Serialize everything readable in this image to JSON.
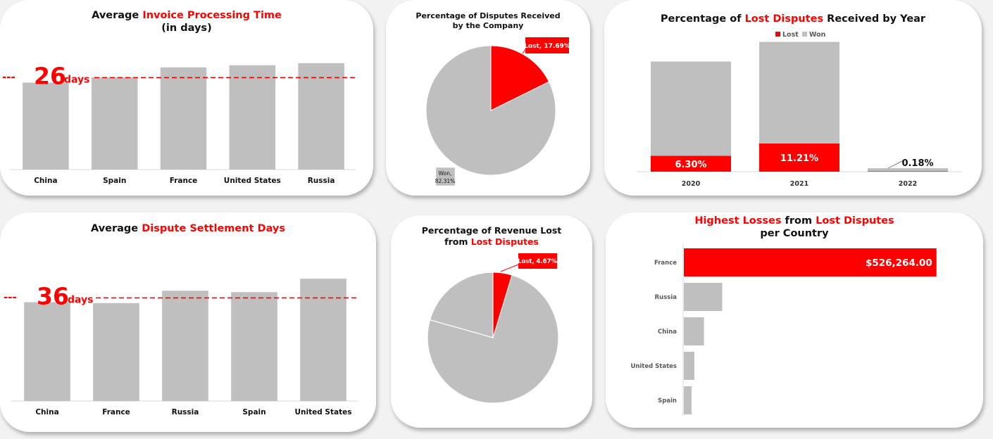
{
  "colors": {
    "lost": "#ff0000",
    "won": "#bfbfbf",
    "axis": "#d9d9d9",
    "text": "#111111",
    "white": "#ffffff"
  },
  "cards": {
    "invoice": {
      "title_pre": "Average ",
      "title_red": "Invoice Processing Time",
      "title_post": "",
      "title_line2": "(in days)"
    },
    "disputes_pie": {
      "title_line1": "Percentage of Disputes Received",
      "title_line2": "by the Company"
    },
    "lost_year": {
      "title_pre": "Percentage of ",
      "title_red": "Lost Disputes",
      "title_post": " Received by Year"
    },
    "settlement": {
      "title_pre": "Average ",
      "title_red": "Dispute Settlement Days"
    },
    "revenue_pie": {
      "title_line1": "Percentage of Revenue Lost",
      "title_pre2": "from ",
      "title_red2": "Lost Disputes"
    },
    "losses": {
      "title_red1": "Highest Losses",
      "title_mid": " from ",
      "title_red2": "Lost Disputes",
      "title_line2": "per Country"
    }
  },
  "chart_data": [
    {
      "id": "invoice",
      "type": "bar",
      "title": "Average Invoice Processing Time (in days)",
      "categories": [
        "China",
        "Spain",
        "France",
        "United States",
        "Russia"
      ],
      "values": [
        24.6,
        26.1,
        28.9,
        29.5,
        30.1
      ],
      "ylim": [
        0,
        40
      ],
      "reference": {
        "value": 26,
        "number_label": "26",
        "unit_label": "days",
        "prefix": "---"
      }
    },
    {
      "id": "disputes_pie",
      "type": "pie",
      "title": "Percentage of Disputes Received by the Company",
      "slices": [
        {
          "name": "Lost",
          "value": 17.69,
          "label": "Lost, 17.69%"
        },
        {
          "name": "Won",
          "value": 82.31,
          "label_line1": "Won,",
          "label_line2": "82.31%"
        }
      ]
    },
    {
      "id": "lost_year",
      "type": "bar",
      "stacked": true,
      "title": "Percentage of Lost Disputes Received by Year",
      "categories": [
        "2020",
        "2021",
        "2022"
      ],
      "legend": [
        "Lost",
        "Won"
      ],
      "legend_position": "top-center",
      "series": [
        {
          "name": "Lost",
          "values": [
            6.3,
            11.21,
            0.18
          ],
          "labels": [
            "6.30%",
            "11.21%",
            "0.18%"
          ]
        },
        {
          "name": "Won",
          "values": [
            37.6,
            40.5,
            1.2
          ]
        }
      ],
      "ylim": [
        0,
        60
      ]
    },
    {
      "id": "settlement",
      "type": "bar",
      "title": "Average Dispute Settlement Days",
      "categories": [
        "China",
        "France",
        "Russia",
        "Spain",
        "United States"
      ],
      "values": [
        34.5,
        34.2,
        38.5,
        38.0,
        42.7
      ],
      "ylim": [
        0,
        56
      ],
      "reference": {
        "value": 36,
        "number_label": "36",
        "unit_label": "days",
        "prefix": "---"
      }
    },
    {
      "id": "revenue_pie",
      "type": "pie",
      "title": "Percentage of Revenue Lost from Lost Disputes",
      "slices": [
        {
          "name": "Lost",
          "value": 4.67,
          "label": "Lost, 4.67%"
        },
        {
          "name": "Won",
          "value": 95.33
        }
      ],
      "outline_wedge_percent": 20.6
    },
    {
      "id": "losses",
      "type": "bar",
      "orientation": "horizontal",
      "title": "Highest Losses from Lost Disputes per Country",
      "categories": [
        "France",
        "Russia",
        "China",
        "United States",
        "Spain"
      ],
      "values": [
        526264,
        80000,
        42000,
        22000,
        16000
      ],
      "labels": [
        "$526,264.00",
        "",
        "",
        "",
        ""
      ],
      "xlim": [
        0,
        600000
      ]
    }
  ]
}
